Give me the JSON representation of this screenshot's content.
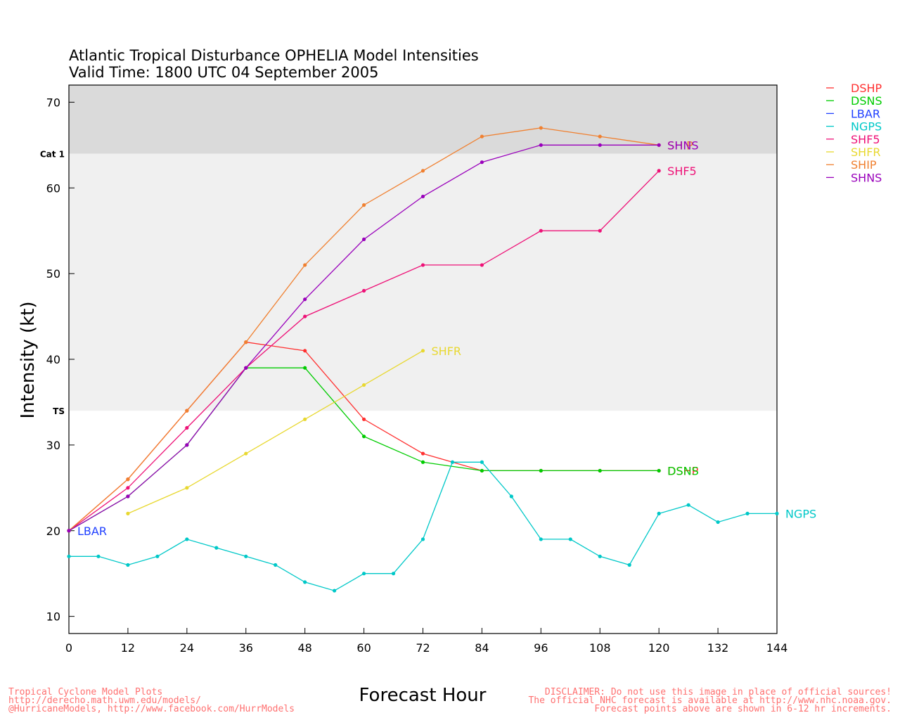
{
  "chart_data": {
    "type": "line",
    "title": "Atlantic Tropical Disturbance OPHELIA Model Intensities",
    "subtitle": "Valid Time: 1800 UTC 04 September 2005",
    "xlabel": "Forecast Hour",
    "ylabel": "Intensity (kt)",
    "xlim": [
      0,
      144
    ],
    "ylim": [
      8,
      72
    ],
    "x_ticks": [
      "0",
      "12",
      "24",
      "36",
      "48",
      "60",
      "72",
      "84",
      "96",
      "108",
      "120",
      "132",
      "144"
    ],
    "y_ticks": [
      "10",
      "20",
      "30",
      "40",
      "50",
      "60",
      "70"
    ],
    "bands": [
      {
        "label": "TS",
        "from": 34,
        "to": 64,
        "color": "#f0f0f0"
      },
      {
        "label": "Cat 1",
        "from": 64,
        "to": 72,
        "color": "#dadada"
      }
    ],
    "legend_position": "right",
    "series": [
      {
        "name": "DSHP",
        "color": "#ff3030",
        "points": [
          [
            0,
            20
          ],
          [
            12,
            26
          ],
          [
            24,
            34
          ],
          [
            36,
            42
          ],
          [
            48,
            41
          ],
          [
            60,
            33
          ],
          [
            72,
            29
          ],
          [
            84,
            27
          ],
          [
            96,
            27
          ],
          [
            108,
            27
          ],
          [
            120,
            27
          ]
        ],
        "end_label": "DSHP"
      },
      {
        "name": "DSNS",
        "color": "#00cc00",
        "points": [
          [
            0,
            20
          ],
          [
            12,
            24
          ],
          [
            24,
            30
          ],
          [
            36,
            39
          ],
          [
            48,
            39
          ],
          [
            60,
            31
          ],
          [
            72,
            28
          ],
          [
            84,
            27
          ],
          [
            96,
            27
          ],
          [
            108,
            27
          ],
          [
            120,
            27
          ]
        ],
        "end_label": "DSNS"
      },
      {
        "name": "LBAR",
        "color": "#2040ff",
        "points": [
          [
            0,
            20
          ]
        ],
        "end_label": "LBAR"
      },
      {
        "name": "NGPS",
        "color": "#00c8c8",
        "points": [
          [
            0,
            17
          ],
          [
            6,
            17
          ],
          [
            12,
            16
          ],
          [
            18,
            17
          ],
          [
            24,
            19
          ],
          [
            30,
            18
          ],
          [
            36,
            17
          ],
          [
            42,
            16
          ],
          [
            48,
            14
          ],
          [
            54,
            13
          ],
          [
            60,
            15
          ],
          [
            66,
            15
          ],
          [
            72,
            19
          ],
          [
            78,
            28
          ],
          [
            84,
            28
          ],
          [
            90,
            24
          ],
          [
            96,
            19
          ],
          [
            102,
            19
          ],
          [
            108,
            17
          ],
          [
            114,
            16
          ],
          [
            120,
            22
          ],
          [
            126,
            23
          ],
          [
            132,
            21
          ],
          [
            138,
            22
          ],
          [
            144,
            22
          ]
        ],
        "end_label": "NGPS"
      },
      {
        "name": "SHF5",
        "color": "#ee1177",
        "points": [
          [
            0,
            20
          ],
          [
            12,
            25
          ],
          [
            24,
            32
          ],
          [
            36,
            39
          ],
          [
            48,
            45
          ],
          [
            60,
            48
          ],
          [
            72,
            51
          ],
          [
            84,
            51
          ],
          [
            96,
            55
          ],
          [
            108,
            55
          ],
          [
            120,
            62
          ]
        ],
        "end_label": "SHF5"
      },
      {
        "name": "SHFR",
        "color": "#e8d830",
        "points": [
          [
            12,
            22
          ],
          [
            24,
            25
          ],
          [
            36,
            29
          ],
          [
            48,
            33
          ],
          [
            60,
            37
          ],
          [
            72,
            41
          ]
        ],
        "end_label": "SHFR"
      },
      {
        "name": "SHIP",
        "color": "#f08030",
        "points": [
          [
            0,
            20
          ],
          [
            12,
            26
          ],
          [
            24,
            34
          ],
          [
            36,
            42
          ],
          [
            48,
            51
          ],
          [
            60,
            58
          ],
          [
            72,
            62
          ],
          [
            84,
            66
          ],
          [
            96,
            67
          ],
          [
            108,
            66
          ],
          [
            120,
            65
          ]
        ],
        "end_label": "SHIP"
      },
      {
        "name": "SHNS",
        "color": "#9900bb",
        "points": [
          [
            0,
            20
          ],
          [
            12,
            24
          ],
          [
            24,
            30
          ],
          [
            36,
            39
          ],
          [
            48,
            47
          ],
          [
            60,
            54
          ],
          [
            72,
            59
          ],
          [
            84,
            63
          ],
          [
            96,
            65
          ],
          [
            108,
            65
          ],
          [
            120,
            65
          ]
        ],
        "end_label": "SHNS"
      }
    ]
  },
  "footer": {
    "left": [
      "Tropical Cyclone Model Plots",
      "http://derecho.math.uwm.edu/models/",
      "@HurricaneModels, http://www.facebook.com/HurrModels"
    ],
    "right": [
      "DISCLAIMER: Do not use this image in place of official sources!",
      "The official NHC forecast is available at http://www.nhc.noaa.gov.",
      "Forecast points above are shown in 6-12 hr increments."
    ]
  }
}
